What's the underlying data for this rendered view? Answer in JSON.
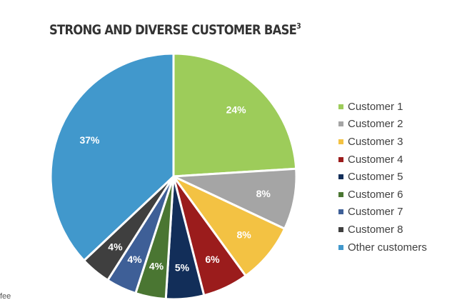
{
  "title": "STRONG AND DIVERSE CUSTOMER BASE",
  "title_superscript": "3",
  "footnote": "fee",
  "chart_data": {
    "type": "pie",
    "title": "STRONG AND DIVERSE CUSTOMER BASE",
    "legend_position": "right",
    "slices": [
      {
        "name": "Customer 1",
        "label": "24%",
        "value": 24,
        "color": "#9dcc5a"
      },
      {
        "name": "Customer 2",
        "label": "8%",
        "value": 8,
        "color": "#a5a5a5"
      },
      {
        "name": "Customer 3",
        "label": "8%",
        "value": 8,
        "color": "#f3c243"
      },
      {
        "name": "Customer 4",
        "label": "6%",
        "value": 6,
        "color": "#9b1c1c"
      },
      {
        "name": "Customer 5",
        "label": "5%",
        "value": 5,
        "color": "#122e59"
      },
      {
        "name": "Customer 6",
        "label": "4%",
        "value": 4,
        "color": "#4a7632"
      },
      {
        "name": "Customer 7",
        "label": "4%",
        "value": 4,
        "color": "#3e5f97"
      },
      {
        "name": "Customer 8",
        "label": "4%",
        "value": 4,
        "color": "#3f3f3f"
      },
      {
        "name": "Other customers",
        "label": "37%",
        "value": 37,
        "color": "#4198cc"
      }
    ]
  }
}
